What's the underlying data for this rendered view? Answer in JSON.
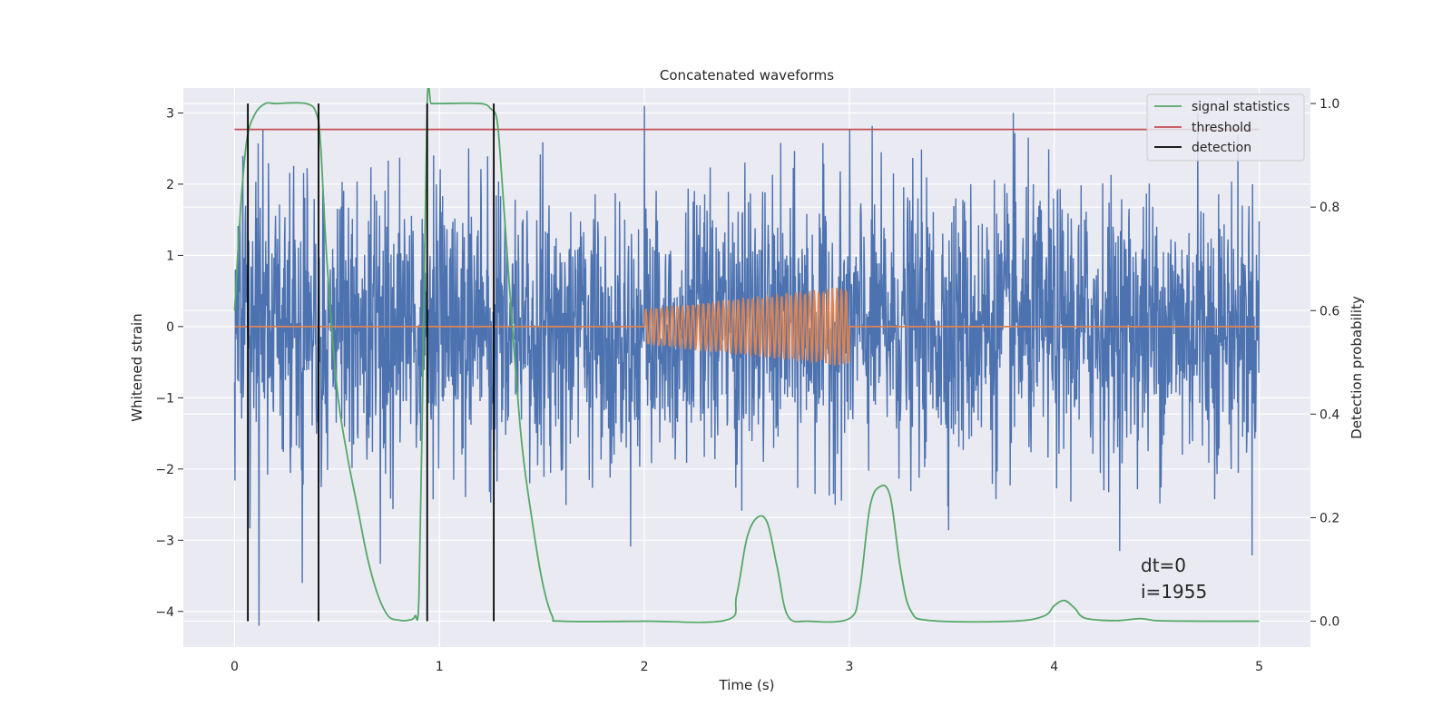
{
  "chart_data": {
    "type": "line",
    "title": "Concatenated waveforms",
    "xlabel": "Time (s)",
    "ylabel": "Whitened strain",
    "y2label": "Detection probability",
    "xlim": [
      -0.25,
      5.25
    ],
    "ylim": [
      -4.5,
      3.35
    ],
    "y2lim": [
      -0.05,
      1.03
    ],
    "xticks": [
      0,
      1,
      2,
      3,
      4,
      5
    ],
    "yticks": [
      -4,
      -3,
      -2,
      -1,
      0,
      1,
      2,
      3
    ],
    "y2ticks": [
      0.0,
      0.2,
      0.4,
      0.6,
      0.8,
      1.0
    ],
    "xtick_labels": [
      "0",
      "1",
      "2",
      "3",
      "4",
      "5"
    ],
    "ytick_labels": [
      "−4",
      "−3",
      "−2",
      "−1",
      "0",
      "1",
      "2",
      "3"
    ],
    "y2tick_labels": [
      "0.0",
      "0.2",
      "0.4",
      "0.6",
      "0.8",
      "1.0"
    ],
    "grid": true,
    "legend_position": "top-right",
    "legend": [
      {
        "label": "signal statistics",
        "color": "#55a868"
      },
      {
        "label": "threshold",
        "color": "#c44e52"
      },
      {
        "label": "detection",
        "color": "#000000"
      }
    ],
    "annotations": [
      "dt=0",
      "i=1955"
    ],
    "series": [
      {
        "color": "#4c72b0",
        "axis": "left",
        "description_range": [
          0,
          5
        ],
        "amplitude_typical": 1.3,
        "peaks": [
          [
            0.12,
            -4.2
          ],
          [
            0.33,
            -3.6
          ],
          [
            2.0,
            3.1
          ],
          [
            4.7,
            3.0
          ],
          [
            3.8,
            3.0
          ]
        ]
      },
      {
        "color": "#dd8452",
        "axis": "left",
        "x": [
          0,
          2.0,
          2.25,
          2.5,
          2.75,
          3.0,
          3.001,
          5.0
        ],
        "envelope": [
          0,
          0.25,
          0.32,
          0.4,
          0.48,
          0.57,
          0,
          0
        ]
      },
      {
        "name": "signal statistics",
        "color": "#55a868",
        "axis": "right",
        "x": [
          0,
          0.03,
          0.06,
          0.1,
          0.15,
          0.2,
          0.35,
          0.4,
          0.42,
          0.45,
          0.5,
          0.55,
          0.6,
          0.65,
          0.7,
          0.75,
          0.8,
          0.85,
          0.88,
          0.9,
          0.92,
          0.94,
          0.96,
          1.0,
          1.2,
          1.25,
          1.28,
          1.3,
          1.35,
          1.4,
          1.45,
          1.5,
          1.55,
          1.6,
          2.0,
          2.4,
          2.45,
          2.5,
          2.55,
          2.6,
          2.65,
          2.7,
          2.8,
          3.0,
          3.05,
          3.1,
          3.15,
          3.2,
          3.25,
          3.3,
          3.4,
          3.8,
          3.95,
          4.0,
          4.05,
          4.1,
          4.15,
          4.3,
          4.42,
          4.5,
          4.7,
          5.0
        ],
        "y": [
          0.6,
          0.8,
          0.93,
          0.98,
          1.0,
          1.0,
          1.0,
          0.98,
          0.92,
          0.7,
          0.45,
          0.32,
          0.22,
          0.12,
          0.05,
          0.01,
          0.002,
          0.002,
          0.01,
          0.05,
          0.5,
          1.0,
          1.0,
          1.0,
          1.0,
          0.99,
          0.97,
          0.88,
          0.6,
          0.35,
          0.2,
          0.08,
          0.01,
          0.0,
          0.0,
          0.002,
          0.05,
          0.16,
          0.2,
          0.19,
          0.1,
          0.01,
          0.0,
          0.005,
          0.06,
          0.22,
          0.26,
          0.24,
          0.1,
          0.02,
          0.001,
          0.0,
          0.01,
          0.03,
          0.04,
          0.025,
          0.006,
          0.001,
          0.005,
          0.001,
          0.0,
          0.0
        ]
      },
      {
        "name": "threshold",
        "color": "#c44e52",
        "axis": "right",
        "x": [
          0,
          5.0
        ],
        "y": [
          0.95,
          0.95
        ]
      },
      {
        "name": "detection",
        "color": "#000000",
        "axis": "right",
        "type": "vlines",
        "x": [
          0.065,
          0.41,
          0.94,
          1.265
        ],
        "y_range": [
          0.0,
          1.0
        ]
      }
    ]
  }
}
